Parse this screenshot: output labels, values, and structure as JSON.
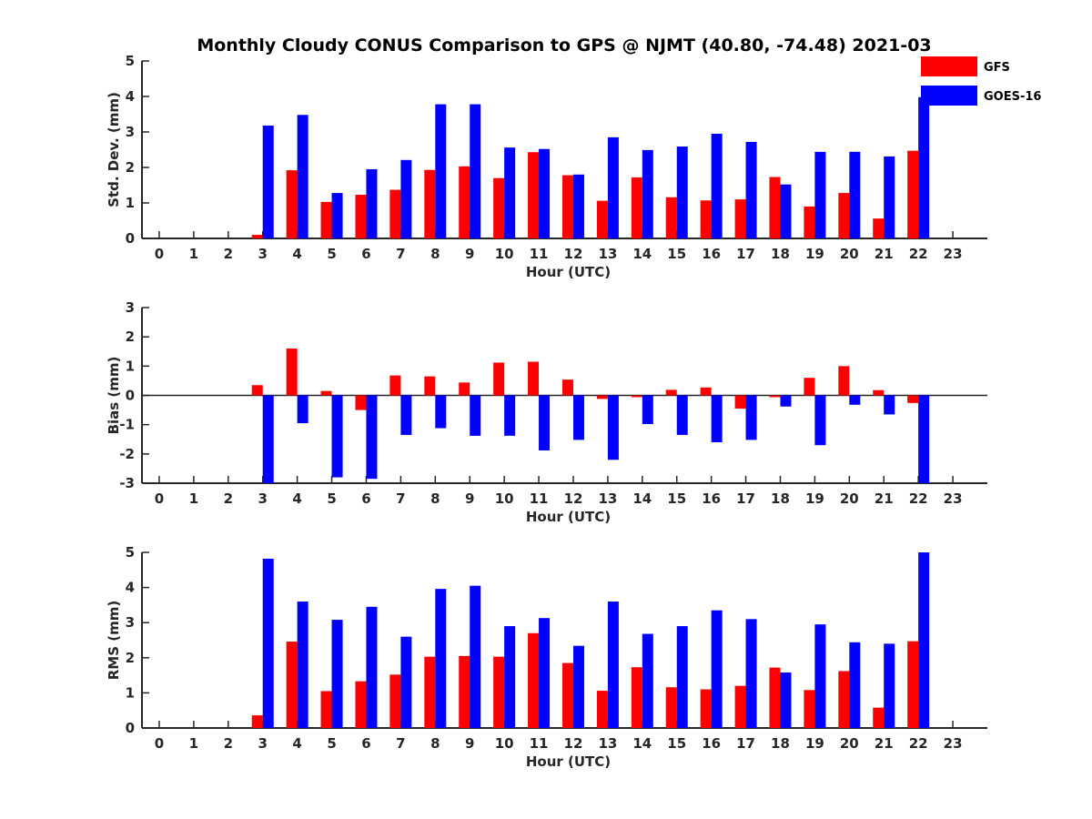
{
  "chart_data": {
    "type": "bar",
    "title": "Monthly Cloudy CONUS Comparison to GPS @ NJMT (40.80, -74.48) 2021-03",
    "legend": {
      "placement": "top-right",
      "entries": [
        {
          "name": "GFS",
          "color": "#ff0000"
        },
        {
          "name": "GOES-16",
          "color": "#0000ff"
        }
      ]
    },
    "colors": {
      "GFS": "#ff0000",
      "GOES-16": "#0000ff"
    },
    "categories": [
      "0",
      "1",
      "2",
      "3",
      "4",
      "5",
      "6",
      "7",
      "8",
      "9",
      "10",
      "11",
      "12",
      "13",
      "14",
      "15",
      "16",
      "17",
      "18",
      "19",
      "20",
      "21",
      "22",
      "23"
    ],
    "panels": [
      {
        "ylabel": "Std. Dev. (mm)",
        "xlabel": "Hour (UTC)",
        "ylim": [
          0,
          5
        ],
        "yticks": [
          0,
          1,
          2,
          3,
          4,
          5
        ],
        "zero_line": false,
        "series": [
          {
            "name": "GFS",
            "values": [
              null,
              null,
              null,
              0.1,
              1.92,
              1.03,
              1.23,
              1.37,
              1.93,
              2.03,
              1.7,
              2.43,
              1.78,
              1.06,
              1.72,
              1.16,
              1.07,
              1.1,
              1.73,
              0.9,
              1.28,
              0.56,
              2.47,
              null
            ]
          },
          {
            "name": "GOES-16",
            "values": [
              null,
              null,
              null,
              3.18,
              3.48,
              1.28,
              1.95,
              2.21,
              3.78,
              3.78,
              2.56,
              2.52,
              1.8,
              2.85,
              2.49,
              2.59,
              2.95,
              2.72,
              1.52,
              2.44,
              2.44,
              2.31,
              3.98,
              null
            ]
          }
        ]
      },
      {
        "ylabel": "Bias (mm)",
        "xlabel": "Hour (UTC)",
        "ylim": [
          -3,
          3
        ],
        "yticks": [
          -3,
          -2,
          -1,
          0,
          1,
          2,
          3
        ],
        "zero_line": true,
        "series": [
          {
            "name": "GFS",
            "values": [
              null,
              null,
              null,
              0.35,
              1.6,
              0.15,
              -0.5,
              0.68,
              0.65,
              0.44,
              1.12,
              1.15,
              0.54,
              -0.12,
              -0.06,
              0.19,
              0.27,
              -0.45,
              -0.06,
              0.6,
              1.0,
              0.18,
              -0.26,
              null
            ]
          },
          {
            "name": "GOES-16",
            "values": [
              null,
              null,
              null,
              -3.0,
              -0.95,
              -2.8,
              -2.85,
              -1.35,
              -1.12,
              -1.38,
              -1.38,
              -1.88,
              -1.52,
              -2.2,
              -0.98,
              -1.35,
              -1.6,
              -1.52,
              -0.38,
              -1.7,
              -0.32,
              -0.65,
              -3.0,
              null
            ]
          }
        ]
      },
      {
        "ylabel": "RMS (mm)",
        "xlabel": "Hour (UTC)",
        "ylim": [
          0,
          5
        ],
        "yticks": [
          0,
          1,
          2,
          3,
          4,
          5
        ],
        "zero_line": false,
        "series": [
          {
            "name": "GFS",
            "values": [
              null,
              null,
              null,
              0.36,
              2.46,
              1.05,
              1.33,
              1.52,
              2.03,
              2.05,
              2.03,
              2.7,
              1.85,
              1.06,
              1.73,
              1.16,
              1.1,
              1.2,
              1.72,
              1.08,
              1.62,
              0.58,
              2.47,
              null
            ]
          },
          {
            "name": "GOES-16",
            "values": [
              null,
              null,
              null,
              4.82,
              3.6,
              3.08,
              3.45,
              2.6,
              3.96,
              4.05,
              2.9,
              3.13,
              2.34,
              3.6,
              2.68,
              2.9,
              3.35,
              3.1,
              1.58,
              2.95,
              2.44,
              2.4,
              5.0,
              null
            ]
          }
        ]
      }
    ]
  }
}
